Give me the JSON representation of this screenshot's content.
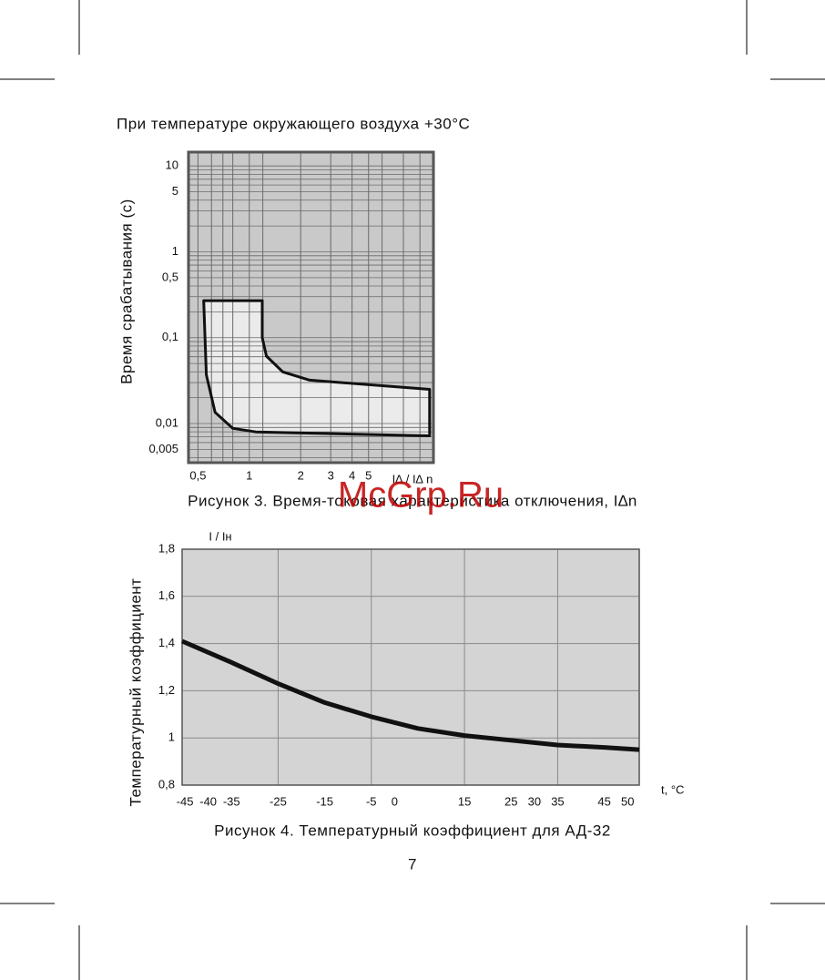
{
  "header": "При температуре окружающего воздуха +30°С",
  "chart_data": [
    {
      "type": "region",
      "y_label": "Время срабатывания (с)",
      "x_label": "I∆ / I∆ n",
      "caption": "Рисунок 3. Время-токовая характеристика отключения, I∆n",
      "log_scale": true,
      "background": "#c9c9c9",
      "xlim": [
        0.44,
        12
      ],
      "ylim": [
        0.0035,
        14.5
      ],
      "xticks": [
        {
          "value": 0.5,
          "label": "0,5"
        },
        1,
        2,
        3,
        4,
        5
      ],
      "yticks": [
        10,
        5,
        1,
        {
          "value": 0.5,
          "label": "0,5"
        },
        {
          "value": 0.1,
          "label": "0,1"
        },
        {
          "value": 0.01,
          "label": "0,01"
        },
        {
          "value": 0.005,
          "label": "0,005"
        }
      ],
      "xgrid": [
        0.5,
        0.6,
        0.7,
        0.8,
        1,
        1.2,
        2,
        3,
        4,
        5,
        6,
        8,
        10
      ],
      "ygrid": [
        10,
        9,
        8,
        7,
        6,
        5,
        4,
        3,
        2,
        1,
        0.9,
        0.8,
        0.7,
        0.6,
        0.5,
        0.4,
        0.3,
        0.2,
        0.1,
        0.09,
        0.08,
        0.07,
        0.06,
        0.05,
        0.04,
        0.03,
        0.02,
        0.01,
        0.009,
        0.008,
        0.007,
        0.006,
        0.005,
        0.004
      ],
      "series": [
        {
          "color": "#111111",
          "fill": "#ebebeb",
          "x": [
            0.54,
            1.19,
            1.19,
            1.26,
            1.57,
            2.26,
            11.4,
            11.4,
            1.09,
            0.8,
            0.63,
            0.56,
            0.54
          ],
          "values": [
            0.27,
            0.27,
            0.1,
            0.061,
            0.04,
            0.032,
            0.025,
            0.0072,
            0.008,
            0.0088,
            0.0135,
            0.037,
            0.27
          ]
        }
      ]
    },
    {
      "type": "line",
      "y_label": "Температурный коэффициент",
      "y_unit": "I / Iн",
      "x_label": "t, °С",
      "caption": "Рисунок 4. Температурный коэффициент для АД-32",
      "background": "#d4d4d4",
      "xlim": [
        -45.6,
        52.5
      ],
      "ylim": [
        0.8,
        1.8
      ],
      "xticks": [
        -45,
        -40,
        -35,
        -25,
        -15,
        -5,
        0,
        15,
        25,
        30,
        35,
        45,
        50
      ],
      "yticks": [
        {
          "value": 1.8,
          "label": "1,8"
        },
        {
          "value": 1.6,
          "label": "1,6"
        },
        {
          "value": 1.4,
          "label": "1,4"
        },
        {
          "value": 1.2,
          "label": "1,2"
        },
        1,
        {
          "value": 0.8,
          "label": "0,8"
        }
      ],
      "xgrid": [
        -25,
        -5,
        15,
        35
      ],
      "series": [
        {
          "color": "#111111",
          "x": [
            -45.6,
            -35,
            -25,
            -15,
            -5,
            5,
            15,
            25,
            35,
            45,
            52.5
          ],
          "values": [
            1.41,
            1.32,
            1.23,
            1.15,
            1.09,
            1.04,
            1.01,
            0.99,
            0.97,
            0.96,
            0.95
          ]
        }
      ]
    }
  ],
  "page_number": "7",
  "watermark": "McGrp.Ru"
}
